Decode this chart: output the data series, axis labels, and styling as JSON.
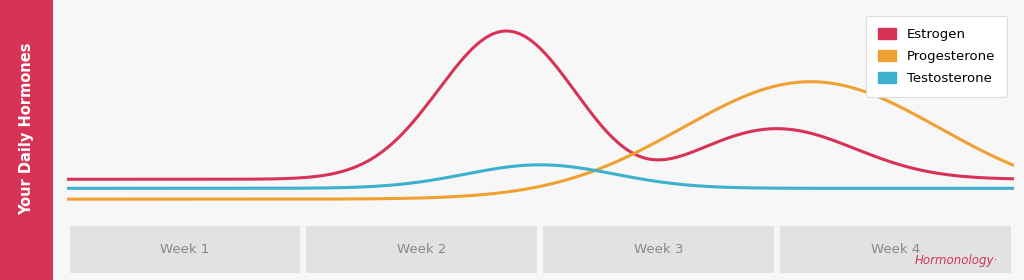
{
  "title_label": "Your Daily Hormones",
  "title_bg_color": "#d63357",
  "title_text_color": "#ffffff",
  "chart_bg_color": "#f7f7f7",
  "plot_bg_color": "#ffffff",
  "week_labels": [
    "Week 1",
    "Week 2",
    "Week 3",
    "Week 4"
  ],
  "week_label_bg": "#e2e2e2",
  "week_label_color": "#888888",
  "estrogen_color": "#d63357",
  "progesterone_color": "#f0a030",
  "testosterone_color": "#3db0cc",
  "watermark_color": "#d63357",
  "legend_frame_color": "#dddddd",
  "baseline_estrogen": 0.15,
  "baseline_progesterone": 0.04,
  "baseline_testosterone": 0.1
}
